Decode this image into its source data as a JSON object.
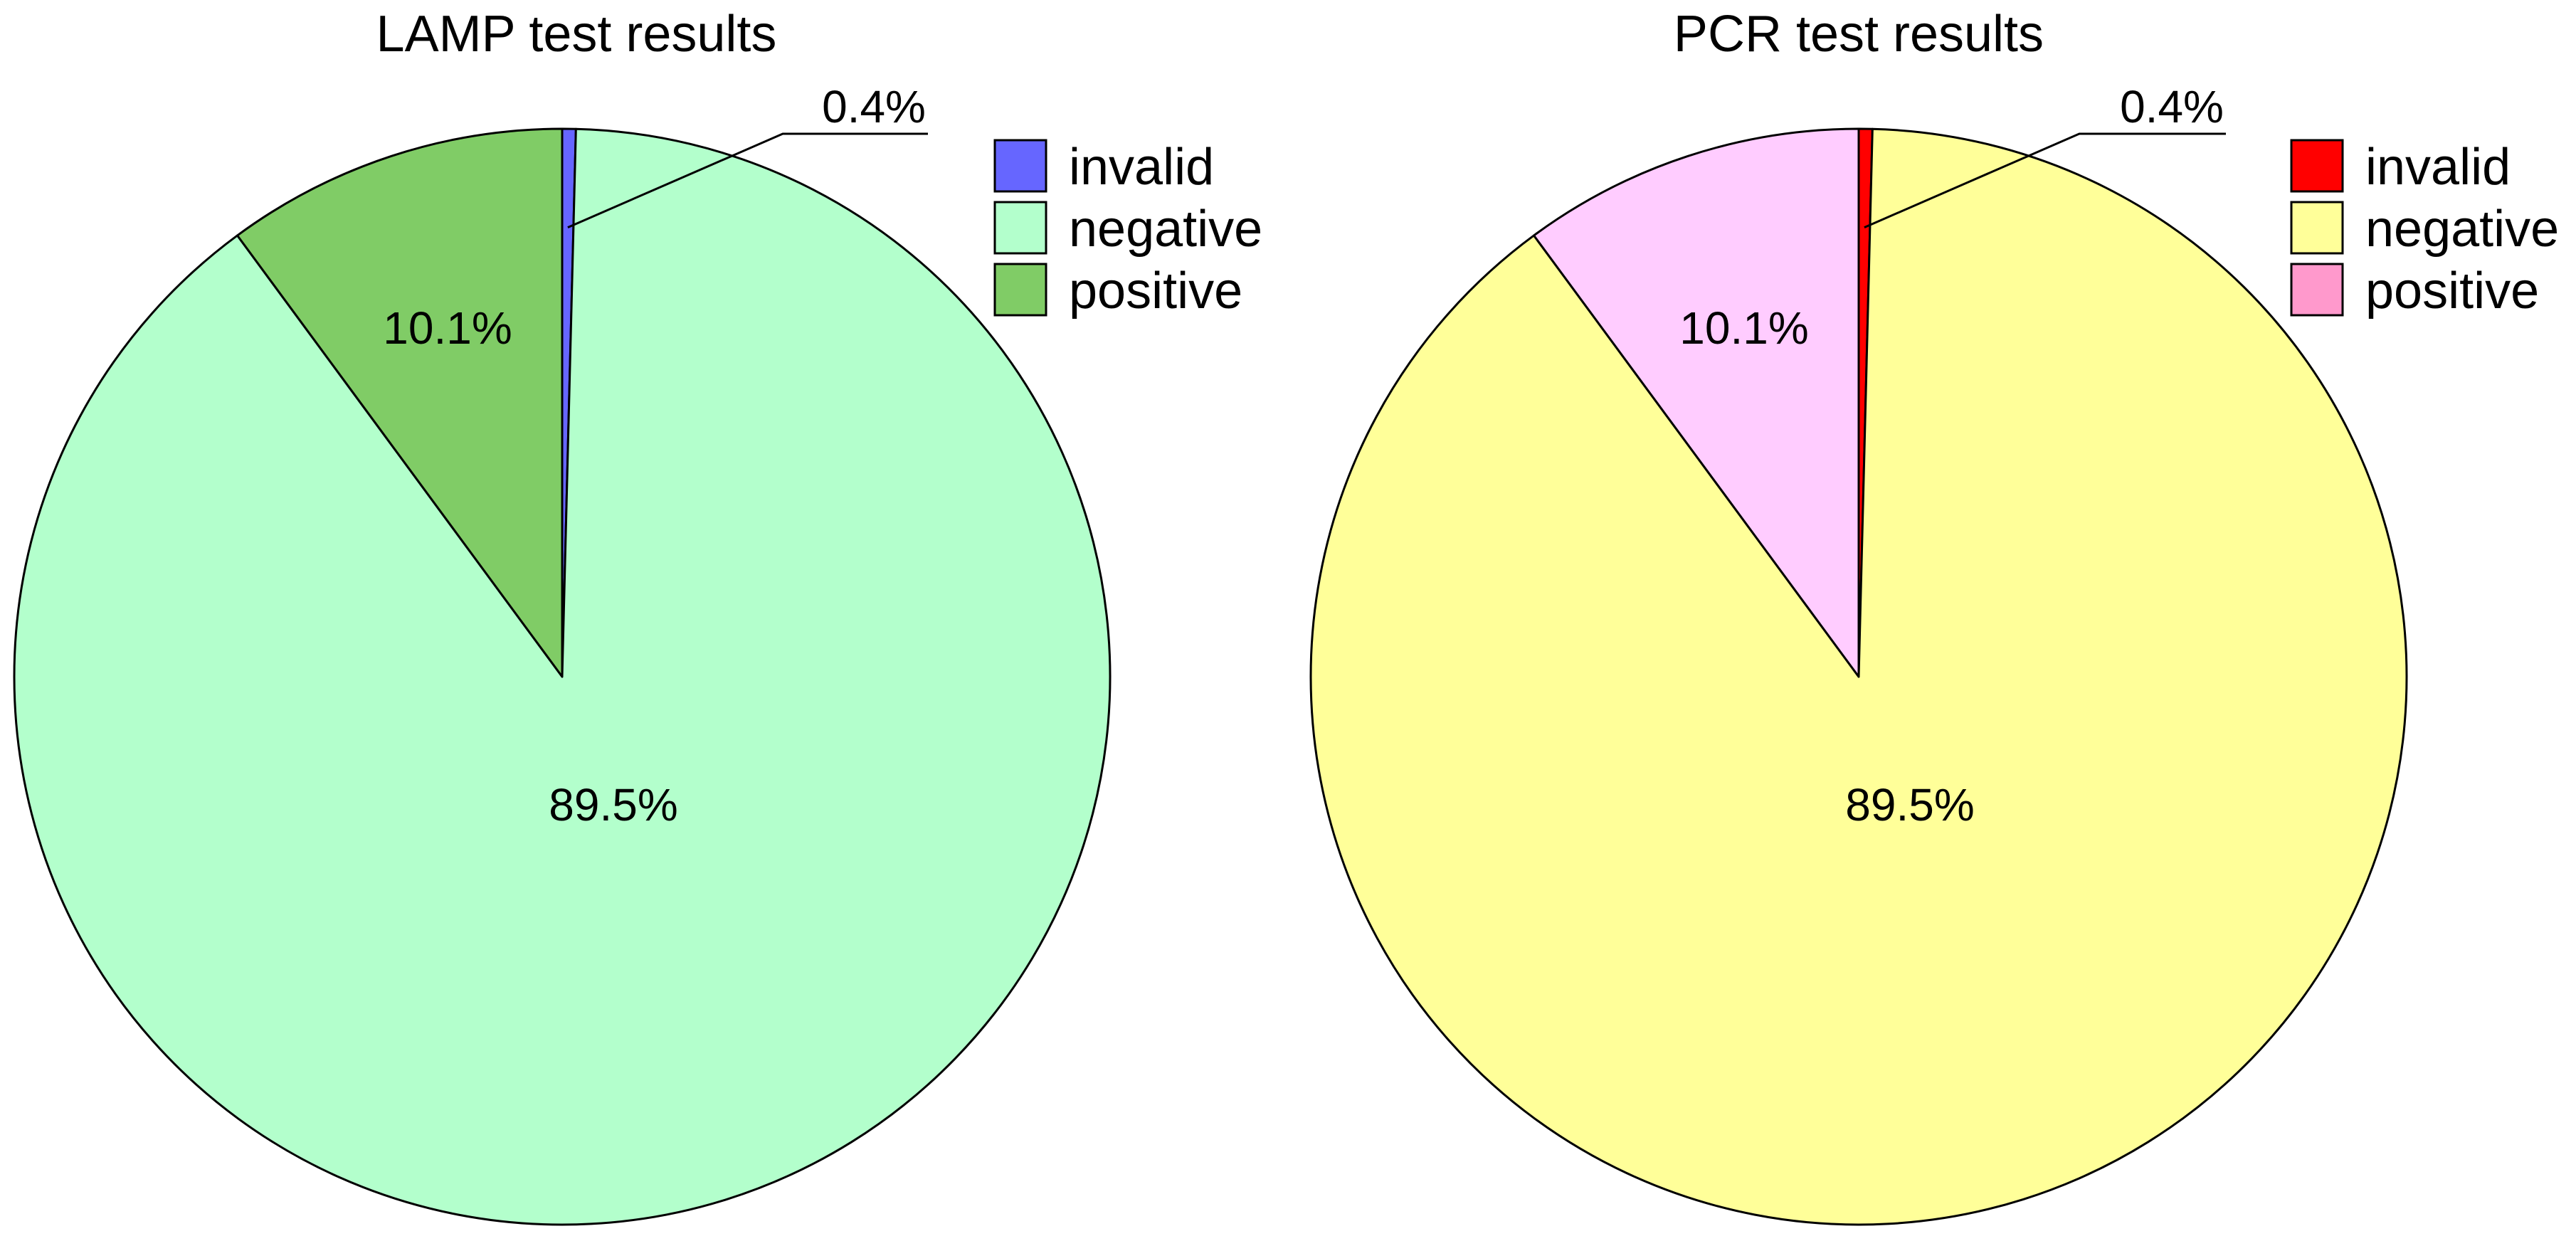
{
  "chart_data": [
    {
      "type": "pie",
      "title": "LAMP test results",
      "categories": [
        "invalid",
        "negative",
        "positive"
      ],
      "values": [
        0.4,
        89.5,
        10.1
      ],
      "value_labels": [
        "0.4%",
        "89.5%",
        "10.1%"
      ],
      "colors": [
        "#6666ff",
        "#b3ffcc",
        "#80cc66"
      ],
      "start": "12 o'clock",
      "direction": "clockwise",
      "legend": {
        "placement": "top-right",
        "entries": [
          "invalid",
          "negative",
          "positive"
        ]
      }
    },
    {
      "type": "pie",
      "title": "PCR test results",
      "categories": [
        "invalid",
        "negative",
        "positive"
      ],
      "values": [
        0.4,
        89.5,
        10.1
      ],
      "value_labels": [
        "0.4%",
        "89.5%",
        "10.1%"
      ],
      "colors": [
        "#ff0000",
        "#ffff99",
        "#ffccff"
      ],
      "legend_colors": [
        "#ff0000",
        "#ffff99",
        "#ff99cc"
      ],
      "start": "12 o'clock",
      "direction": "clockwise",
      "legend": {
        "placement": "top-right",
        "entries": [
          "invalid",
          "negative",
          "positive"
        ]
      }
    }
  ]
}
